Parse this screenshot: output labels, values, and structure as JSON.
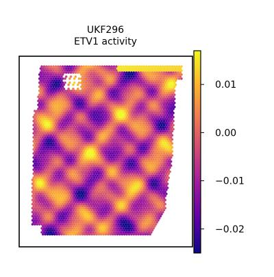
{
  "chart_data": {
    "type": "heatmap",
    "subtype": "spatial transcriptomics spot map",
    "title_line1": "UKF296",
    "title_line2": "ETV1 activity",
    "xlabel": "",
    "ylabel": "",
    "colormap": "plasma",
    "colorbar": {
      "vmin": -0.025,
      "vmax": 0.017,
      "ticks": [
        0.01,
        0.0,
        -0.01,
        -0.02
      ],
      "tick_labels": [
        "0.01",
        "0.00",
        "−0.01",
        "−0.02"
      ]
    },
    "colormap_stops": [
      "#0d0887",
      "#5c01a6",
      "#9c179e",
      "#cc4778",
      "#ed7953",
      "#fdb42f",
      "#f0f921"
    ],
    "frame_color": "#000000",
    "grid": false,
    "legend": "colorbar-right"
  }
}
